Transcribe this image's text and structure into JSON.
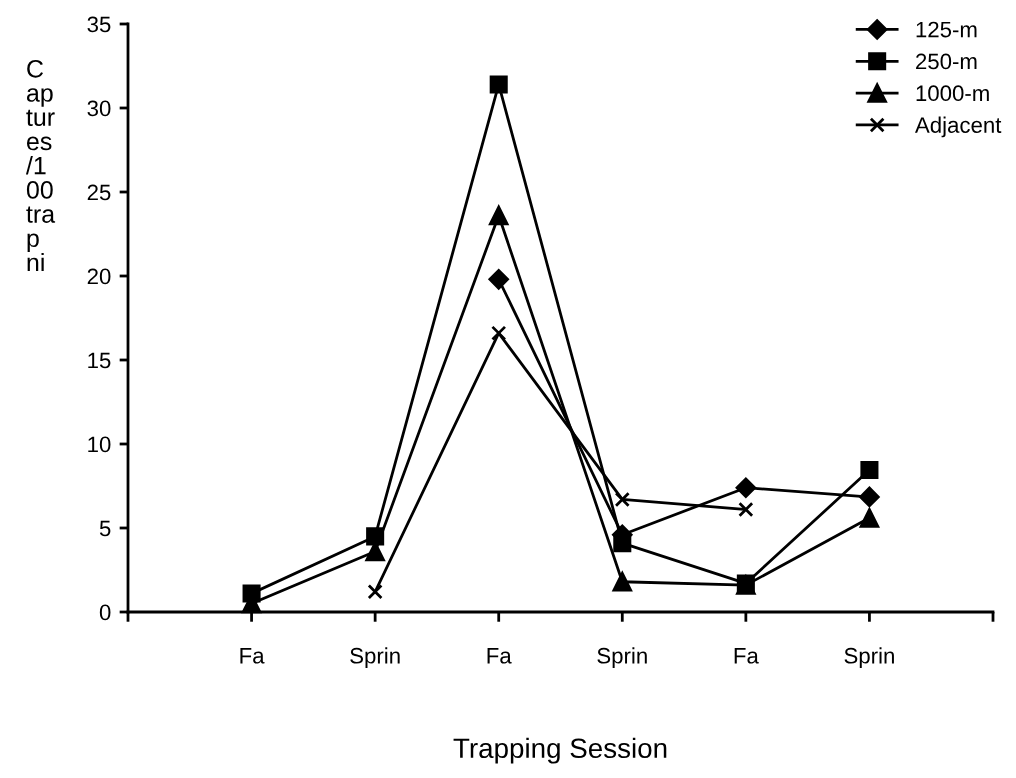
{
  "chart_data": {
    "type": "line",
    "xlabel": "Trapping Session",
    "ylabel": "C\nap\ntur\nes\n/1\n00\ntra\np\nni",
    "categories": [
      "Fa",
      "Sprin",
      "Fa",
      "Sprin",
      "Fa",
      "Sprin"
    ],
    "series": [
      {
        "name": "125-m",
        "color": "#000000",
        "marker": "diamond",
        "values": [
          null,
          null,
          19.8,
          4.6,
          7.4,
          6.85
        ]
      },
      {
        "name": "250-m",
        "color": "#000000",
        "marker": "square",
        "values": [
          1.1,
          4.5,
          31.4,
          4.1,
          1.7,
          8.45
        ]
      },
      {
        "name": "1000-m",
        "color": "#000000",
        "marker": "triangle",
        "values": [
          0.5,
          3.6,
          23.6,
          1.8,
          1.6,
          5.6
        ]
      },
      {
        "name": "Adjacent",
        "color": "#000000",
        "marker": "cross",
        "values": [
          null,
          1.2,
          16.6,
          6.7,
          6.1,
          null
        ]
      }
    ],
    "ylim": [
      0,
      35
    ],
    "yticks": [
      0,
      5,
      10,
      15,
      20,
      25,
      30,
      35
    ],
    "grid": false,
    "legend": "top right",
    "line_style": "solid"
  }
}
